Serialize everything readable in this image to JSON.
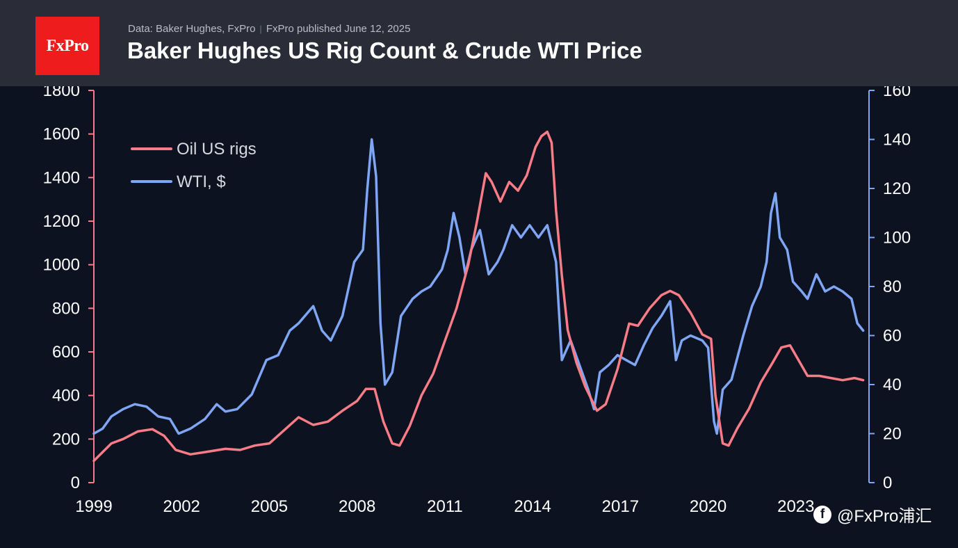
{
  "header": {
    "logo_text": "FxPro",
    "source": "Data: Baker Hughes, FxPro",
    "published": "FxPro published June 12, 2025",
    "title": "Baker Hughes US Rig Count & Crude WTI Price",
    "accent_color": "#ee1c1c"
  },
  "watermark": {
    "icon": "facebook-icon",
    "text": "@FxPro浦汇"
  },
  "chart_data": {
    "type": "line",
    "title": "Baker Hughes US Rig Count & Crude WTI Price",
    "xlabel": "",
    "ylabel_left": "",
    "ylabel_right": "",
    "xlim": [
      1999,
      2025.5
    ],
    "ylim_left": [
      0,
      1800
    ],
    "ylim_right": [
      0,
      160
    ],
    "x_ticks": [
      "1999",
      "2002",
      "2005",
      "2008",
      "2011",
      "2014",
      "2017",
      "2020",
      "2023"
    ],
    "y_ticks_left": [
      "0",
      "200",
      "400",
      "600",
      "800",
      "1000",
      "1200",
      "1400",
      "1600",
      "1800"
    ],
    "y_ticks_right": [
      "0",
      "20",
      "40",
      "60",
      "80",
      "100",
      "120",
      "140",
      "160"
    ],
    "grid": false,
    "legend_placement": "top-left",
    "series": [
      {
        "name": "Oil US rigs",
        "axis": "left",
        "color": "#f87c86",
        "x": [
          1999.0,
          1999.3,
          1999.6,
          2000.0,
          2000.5,
          2001.0,
          2001.4,
          2001.8,
          2002.3,
          2002.8,
          2003.5,
          2004.0,
          2004.5,
          2005.0,
          2005.5,
          2006.0,
          2006.5,
          2007.0,
          2007.5,
          2008.0,
          2008.3,
          2008.6,
          2008.9,
          2009.2,
          2009.45,
          2009.8,
          2010.2,
          2010.6,
          2011.0,
          2011.4,
          2011.8,
          2012.1,
          2012.4,
          2012.6,
          2012.9,
          2013.2,
          2013.5,
          2013.8,
          2014.1,
          2014.3,
          2014.5,
          2014.65,
          2014.8,
          2015.0,
          2015.2,
          2015.5,
          2015.8,
          2016.2,
          2016.5,
          2016.9,
          2017.3,
          2017.6,
          2018.0,
          2018.4,
          2018.7,
          2019.0,
          2019.4,
          2019.8,
          2020.1,
          2020.25,
          2020.5,
          2020.7,
          2021.0,
          2021.4,
          2021.8,
          2022.2,
          2022.5,
          2022.8,
          2023.1,
          2023.4,
          2023.8,
          2024.2,
          2024.6,
          2025.0,
          2025.3
        ],
        "values": [
          100,
          140,
          180,
          200,
          235,
          245,
          215,
          150,
          130,
          140,
          155,
          150,
          170,
          180,
          240,
          300,
          265,
          280,
          330,
          375,
          430,
          430,
          280,
          180,
          170,
          260,
          400,
          500,
          650,
          800,
          1000,
          1200,
          1420,
          1380,
          1290,
          1380,
          1340,
          1410,
          1540,
          1590,
          1610,
          1560,
          1250,
          950,
          700,
          550,
          440,
          330,
          360,
          520,
          730,
          720,
          800,
          860,
          880,
          860,
          780,
          680,
          660,
          400,
          180,
          170,
          250,
          340,
          460,
          550,
          620,
          630,
          560,
          490,
          490,
          480,
          470,
          480,
          470
        ]
      },
      {
        "name": "WTI, $",
        "axis": "right",
        "color": "#7fa6f5",
        "x": [
          1999.0,
          1999.3,
          1999.6,
          2000.0,
          2000.4,
          2000.8,
          2001.2,
          2001.6,
          2001.9,
          2002.3,
          2002.8,
          2003.2,
          2003.5,
          2003.9,
          2004.4,
          2004.9,
          2005.3,
          2005.7,
          2006.0,
          2006.5,
          2006.8,
          2007.1,
          2007.5,
          2007.9,
          2008.2,
          2008.35,
          2008.5,
          2008.65,
          2008.8,
          2008.95,
          2009.2,
          2009.5,
          2009.9,
          2010.2,
          2010.5,
          2010.9,
          2011.1,
          2011.3,
          2011.5,
          2011.7,
          2011.9,
          2012.2,
          2012.5,
          2012.8,
          2013.0,
          2013.3,
          2013.6,
          2013.9,
          2014.2,
          2014.5,
          2014.8,
          2015.0,
          2015.3,
          2015.6,
          2015.9,
          2016.1,
          2016.3,
          2016.6,
          2016.9,
          2017.2,
          2017.5,
          2017.8,
          2018.1,
          2018.4,
          2018.7,
          2018.9,
          2019.1,
          2019.4,
          2019.8,
          2020.0,
          2020.2,
          2020.3,
          2020.5,
          2020.8,
          2021.2,
          2021.5,
          2021.8,
          2022.0,
          2022.15,
          2022.3,
          2022.45,
          2022.7,
          2022.9,
          2023.2,
          2023.4,
          2023.7,
          2024.0,
          2024.3,
          2024.6,
          2024.9,
          2025.1,
          2025.3
        ],
        "values": [
          20,
          22,
          27,
          30,
          32,
          31,
          27,
          26,
          20,
          22,
          26,
          32,
          29,
          30,
          36,
          50,
          52,
          62,
          65,
          72,
          62,
          58,
          68,
          90,
          95,
          120,
          140,
          125,
          65,
          40,
          45,
          68,
          75,
          78,
          80,
          87,
          95,
          110,
          100,
          85,
          95,
          103,
          85,
          90,
          95,
          105,
          100,
          105,
          100,
          105,
          90,
          50,
          58,
          48,
          38,
          30,
          45,
          48,
          52,
          50,
          48,
          56,
          63,
          68,
          74,
          50,
          58,
          60,
          58,
          55,
          25,
          20,
          38,
          42,
          60,
          72,
          80,
          90,
          110,
          118,
          100,
          95,
          82,
          78,
          75,
          85,
          78,
          80,
          78,
          75,
          65,
          62
        ]
      }
    ]
  }
}
